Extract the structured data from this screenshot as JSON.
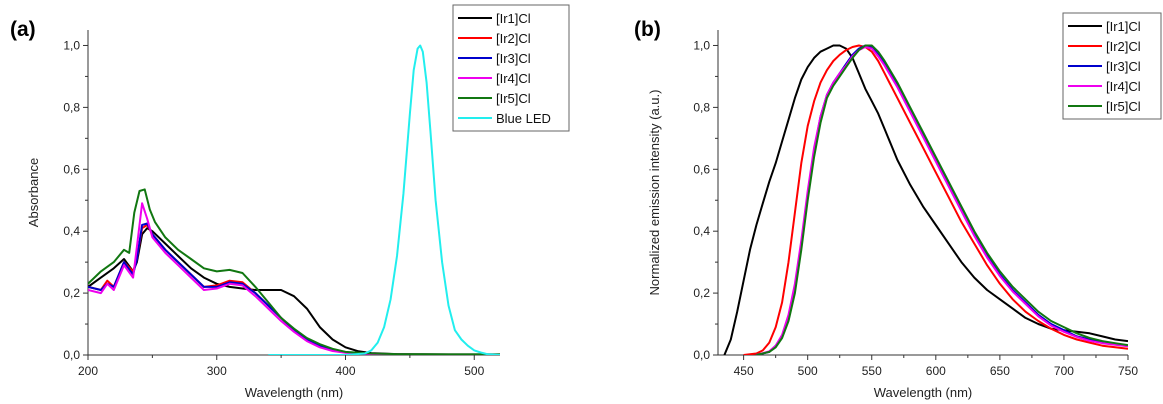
{
  "chart_data": [
    {
      "type": "line",
      "panel_label": "(a)",
      "title": "",
      "xlabel": "Wavelength (nm)",
      "ylabel": "Absorbance",
      "xlim": [
        200,
        520
      ],
      "ylim": [
        0,
        1.05
      ],
      "xticks": [
        "200",
        "300",
        "400",
        "500"
      ],
      "xtick_values": [
        200,
        300,
        400,
        500
      ],
      "yticks": [
        "0,0",
        "0,2",
        "0,4",
        "0,6",
        "0,8",
        "1,0"
      ],
      "ytick_values": [
        0,
        0.2,
        0.4,
        0.6,
        0.8,
        1.0
      ],
      "grid": false,
      "legend": "top-right",
      "series": [
        {
          "name": "[Ir1]Cl",
          "color": "#000000",
          "x": [
            200,
            210,
            220,
            228,
            235,
            238,
            242,
            246,
            250,
            260,
            270,
            280,
            290,
            300,
            310,
            320,
            330,
            340,
            350,
            360,
            370,
            380,
            390,
            400,
            410,
            420,
            440,
            480,
            520
          ],
          "y": [
            0.22,
            0.25,
            0.28,
            0.31,
            0.27,
            0.3,
            0.39,
            0.41,
            0.4,
            0.36,
            0.32,
            0.28,
            0.25,
            0.23,
            0.22,
            0.215,
            0.21,
            0.21,
            0.21,
            0.19,
            0.15,
            0.09,
            0.05,
            0.025,
            0.012,
            0.006,
            0.003,
            0.002,
            0.002
          ]
        },
        {
          "name": "[Ir2]Cl",
          "color": "#ff0000",
          "x": [
            200,
            210,
            215,
            220,
            228,
            235,
            238,
            242,
            246,
            250,
            260,
            270,
            280,
            290,
            300,
            310,
            320,
            330,
            340,
            350,
            360,
            370,
            380,
            390,
            400,
            420,
            440,
            480,
            520
          ],
          "y": [
            0.22,
            0.21,
            0.24,
            0.22,
            0.3,
            0.27,
            0.31,
            0.41,
            0.42,
            0.39,
            0.34,
            0.3,
            0.26,
            0.22,
            0.225,
            0.24,
            0.235,
            0.2,
            0.16,
            0.12,
            0.08,
            0.05,
            0.03,
            0.015,
            0.008,
            0.004,
            0.002,
            0.001,
            0.001
          ]
        },
        {
          "name": "[Ir3]Cl",
          "color": "#0000cc",
          "x": [
            200,
            210,
            215,
            220,
            228,
            235,
            238,
            242,
            246,
            250,
            260,
            270,
            280,
            290,
            300,
            310,
            320,
            330,
            340,
            350,
            360,
            370,
            380,
            390,
            400,
            420,
            440,
            480,
            520
          ],
          "y": [
            0.22,
            0.21,
            0.23,
            0.22,
            0.3,
            0.26,
            0.31,
            0.42,
            0.425,
            0.39,
            0.34,
            0.3,
            0.26,
            0.22,
            0.22,
            0.235,
            0.23,
            0.2,
            0.16,
            0.12,
            0.08,
            0.05,
            0.03,
            0.015,
            0.008,
            0.004,
            0.002,
            0.001,
            0.001
          ]
        },
        {
          "name": "[Ir4]Cl",
          "color": "#ee00ee",
          "x": [
            200,
            210,
            215,
            220,
            228,
            235,
            238,
            242,
            246,
            250,
            260,
            270,
            280,
            290,
            300,
            310,
            320,
            330,
            340,
            350,
            360,
            370,
            380,
            390,
            400,
            420,
            440,
            480,
            520
          ],
          "y": [
            0.21,
            0.2,
            0.23,
            0.21,
            0.29,
            0.25,
            0.35,
            0.49,
            0.44,
            0.38,
            0.33,
            0.29,
            0.25,
            0.21,
            0.215,
            0.23,
            0.225,
            0.19,
            0.15,
            0.11,
            0.075,
            0.045,
            0.025,
            0.013,
            0.007,
            0.003,
            0.002,
            0.001,
            0.001
          ]
        },
        {
          "name": "[Ir5]Cl",
          "color": "#117711",
          "x": [
            200,
            210,
            220,
            228,
            232,
            236,
            240,
            244,
            248,
            252,
            260,
            270,
            280,
            290,
            300,
            310,
            320,
            330,
            340,
            350,
            360,
            370,
            380,
            390,
            400,
            420,
            440,
            480,
            520
          ],
          "y": [
            0.23,
            0.27,
            0.3,
            0.34,
            0.33,
            0.46,
            0.53,
            0.535,
            0.47,
            0.43,
            0.38,
            0.34,
            0.31,
            0.28,
            0.27,
            0.275,
            0.265,
            0.22,
            0.17,
            0.12,
            0.085,
            0.055,
            0.035,
            0.02,
            0.01,
            0.005,
            0.003,
            0.002,
            0.002
          ]
        },
        {
          "name": "Blue LED",
          "color": "#22eeee",
          "x": [
            340,
            400,
            415,
            420,
            425,
            430,
            435,
            440,
            445,
            450,
            453,
            456,
            458,
            460,
            463,
            466,
            470,
            475,
            480,
            485,
            490,
            495,
            500,
            505,
            510,
            520
          ],
          "y": [
            0,
            0,
            0.005,
            0.015,
            0.04,
            0.09,
            0.18,
            0.32,
            0.52,
            0.78,
            0.92,
            0.99,
            1.0,
            0.98,
            0.88,
            0.72,
            0.5,
            0.3,
            0.16,
            0.08,
            0.05,
            0.03,
            0.015,
            0.008,
            0.003,
            0
          ]
        }
      ]
    },
    {
      "type": "line",
      "panel_label": "(b)",
      "title": "",
      "xlabel": "Wavelength (nm)",
      "ylabel": "Normalized emission intensity (a.u.)",
      "xlim": [
        430,
        750
      ],
      "ylim": [
        0,
        1.05
      ],
      "xticks": [
        "450",
        "500",
        "550",
        "600",
        "650",
        "700",
        "750"
      ],
      "xtick_values": [
        450,
        500,
        550,
        600,
        650,
        700,
        750
      ],
      "yticks": [
        "0,0",
        "0,2",
        "0,4",
        "0,6",
        "0,8",
        "1,0"
      ],
      "ytick_values": [
        0,
        0.2,
        0.4,
        0.6,
        0.8,
        1.0
      ],
      "grid": false,
      "legend": "top-right",
      "series": [
        {
          "name": "[Ir1]Cl",
          "color": "#000000",
          "x": [
            435,
            440,
            445,
            450,
            455,
            460,
            465,
            470,
            475,
            480,
            485,
            490,
            495,
            500,
            505,
            510,
            515,
            520,
            525,
            530,
            535,
            540,
            545,
            550,
            555,
            560,
            570,
            580,
            590,
            600,
            610,
            620,
            630,
            640,
            650,
            660,
            670,
            680,
            690,
            700,
            710,
            720,
            730,
            740,
            750
          ],
          "y": [
            0,
            0.05,
            0.14,
            0.24,
            0.34,
            0.42,
            0.49,
            0.56,
            0.62,
            0.69,
            0.76,
            0.83,
            0.89,
            0.93,
            0.96,
            0.98,
            0.99,
            1.0,
            1.0,
            0.99,
            0.96,
            0.91,
            0.86,
            0.82,
            0.78,
            0.73,
            0.63,
            0.55,
            0.48,
            0.42,
            0.36,
            0.3,
            0.25,
            0.21,
            0.18,
            0.15,
            0.12,
            0.1,
            0.085,
            0.08,
            0.075,
            0.07,
            0.06,
            0.05,
            0.045
          ]
        },
        {
          "name": "[Ir2]Cl",
          "color": "#ff0000",
          "x": [
            450,
            460,
            465,
            470,
            475,
            480,
            485,
            490,
            495,
            500,
            505,
            510,
            515,
            520,
            525,
            530,
            535,
            540,
            545,
            550,
            555,
            560,
            570,
            580,
            590,
            600,
            610,
            620,
            630,
            640,
            650,
            660,
            670,
            680,
            690,
            700,
            710,
            720,
            730,
            740,
            750
          ],
          "y": [
            0,
            0.005,
            0.015,
            0.04,
            0.09,
            0.17,
            0.3,
            0.46,
            0.62,
            0.74,
            0.82,
            0.88,
            0.92,
            0.95,
            0.97,
            0.985,
            0.995,
            1.0,
            0.995,
            0.98,
            0.95,
            0.91,
            0.83,
            0.75,
            0.67,
            0.59,
            0.51,
            0.43,
            0.36,
            0.29,
            0.23,
            0.18,
            0.14,
            0.11,
            0.085,
            0.065,
            0.05,
            0.04,
            0.03,
            0.025,
            0.02
          ]
        },
        {
          "name": "[Ir3]Cl",
          "color": "#0000cc",
          "x": [
            460,
            470,
            475,
            480,
            485,
            490,
            495,
            500,
            505,
            510,
            515,
            520,
            525,
            530,
            535,
            540,
            545,
            550,
            555,
            560,
            570,
            580,
            590,
            600,
            610,
            620,
            630,
            640,
            650,
            660,
            670,
            680,
            690,
            700,
            710,
            720,
            730,
            740,
            750
          ],
          "y": [
            0,
            0.01,
            0.03,
            0.06,
            0.12,
            0.22,
            0.36,
            0.52,
            0.66,
            0.77,
            0.84,
            0.88,
            0.91,
            0.94,
            0.97,
            0.99,
            1.0,
            0.995,
            0.97,
            0.94,
            0.87,
            0.79,
            0.71,
            0.63,
            0.55,
            0.47,
            0.39,
            0.32,
            0.26,
            0.21,
            0.17,
            0.13,
            0.1,
            0.08,
            0.06,
            0.05,
            0.04,
            0.035,
            0.03
          ]
        },
        {
          "name": "[Ir4]Cl",
          "color": "#ee00ee",
          "x": [
            460,
            470,
            475,
            480,
            485,
            490,
            495,
            500,
            505,
            510,
            515,
            520,
            525,
            530,
            535,
            540,
            545,
            550,
            555,
            560,
            570,
            580,
            590,
            600,
            610,
            620,
            630,
            640,
            650,
            660,
            670,
            680,
            690,
            700,
            710,
            720,
            730,
            740,
            750
          ],
          "y": [
            0,
            0.012,
            0.03,
            0.065,
            0.13,
            0.23,
            0.37,
            0.53,
            0.67,
            0.77,
            0.84,
            0.88,
            0.91,
            0.935,
            0.965,
            0.985,
            0.995,
            0.99,
            0.965,
            0.935,
            0.865,
            0.785,
            0.705,
            0.625,
            0.545,
            0.465,
            0.385,
            0.315,
            0.255,
            0.205,
            0.165,
            0.125,
            0.095,
            0.075,
            0.058,
            0.046,
            0.038,
            0.033,
            0.028
          ]
        },
        {
          "name": "[Ir5]Cl",
          "color": "#117711",
          "x": [
            460,
            470,
            475,
            480,
            485,
            490,
            495,
            500,
            505,
            510,
            515,
            520,
            525,
            530,
            535,
            540,
            545,
            550,
            555,
            560,
            570,
            580,
            590,
            600,
            610,
            620,
            630,
            640,
            650,
            660,
            670,
            680,
            690,
            700,
            710,
            720,
            730,
            740,
            750
          ],
          "y": [
            0,
            0.01,
            0.025,
            0.055,
            0.11,
            0.2,
            0.34,
            0.5,
            0.64,
            0.75,
            0.83,
            0.87,
            0.9,
            0.93,
            0.96,
            0.985,
            1.0,
            1.0,
            0.98,
            0.95,
            0.88,
            0.8,
            0.72,
            0.64,
            0.56,
            0.48,
            0.4,
            0.33,
            0.27,
            0.22,
            0.18,
            0.14,
            0.11,
            0.09,
            0.07,
            0.055,
            0.045,
            0.038,
            0.032
          ]
        }
      ]
    }
  ]
}
